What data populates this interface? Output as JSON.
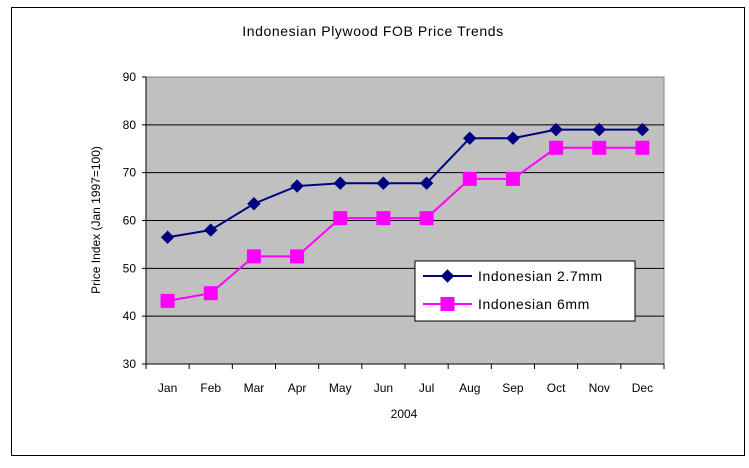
{
  "chart_data": {
    "type": "line",
    "title": "Indonesian Plywood FOB Price Trends",
    "xlabel": "2004",
    "ylabel": "Price Index (Jan 1997=100)",
    "categories": [
      "Jan",
      "Feb",
      "Mar",
      "Apr",
      "May",
      "Jun",
      "Jul",
      "Aug",
      "Sep",
      "Oct",
      "Nov",
      "Dec"
    ],
    "ylim": [
      30,
      90
    ],
    "yticks": [
      30,
      40,
      50,
      60,
      70,
      80,
      90
    ],
    "grid": true,
    "legend_position": "right",
    "plot_background": "#c0c0c0",
    "series": [
      {
        "name": "Indonesian 2.7mm",
        "color": "#000080",
        "marker": "diamond",
        "values": [
          56.5,
          58,
          63.5,
          67.2,
          67.8,
          67.8,
          67.8,
          77.2,
          77.2,
          79,
          79,
          79
        ]
      },
      {
        "name": "Indonesian 6mm",
        "color": "#ff00ff",
        "marker": "square",
        "values": [
          43.2,
          44.8,
          52.5,
          52.5,
          60.5,
          60.5,
          60.5,
          68.7,
          68.7,
          75.2,
          75.2,
          75.2
        ]
      }
    ]
  }
}
